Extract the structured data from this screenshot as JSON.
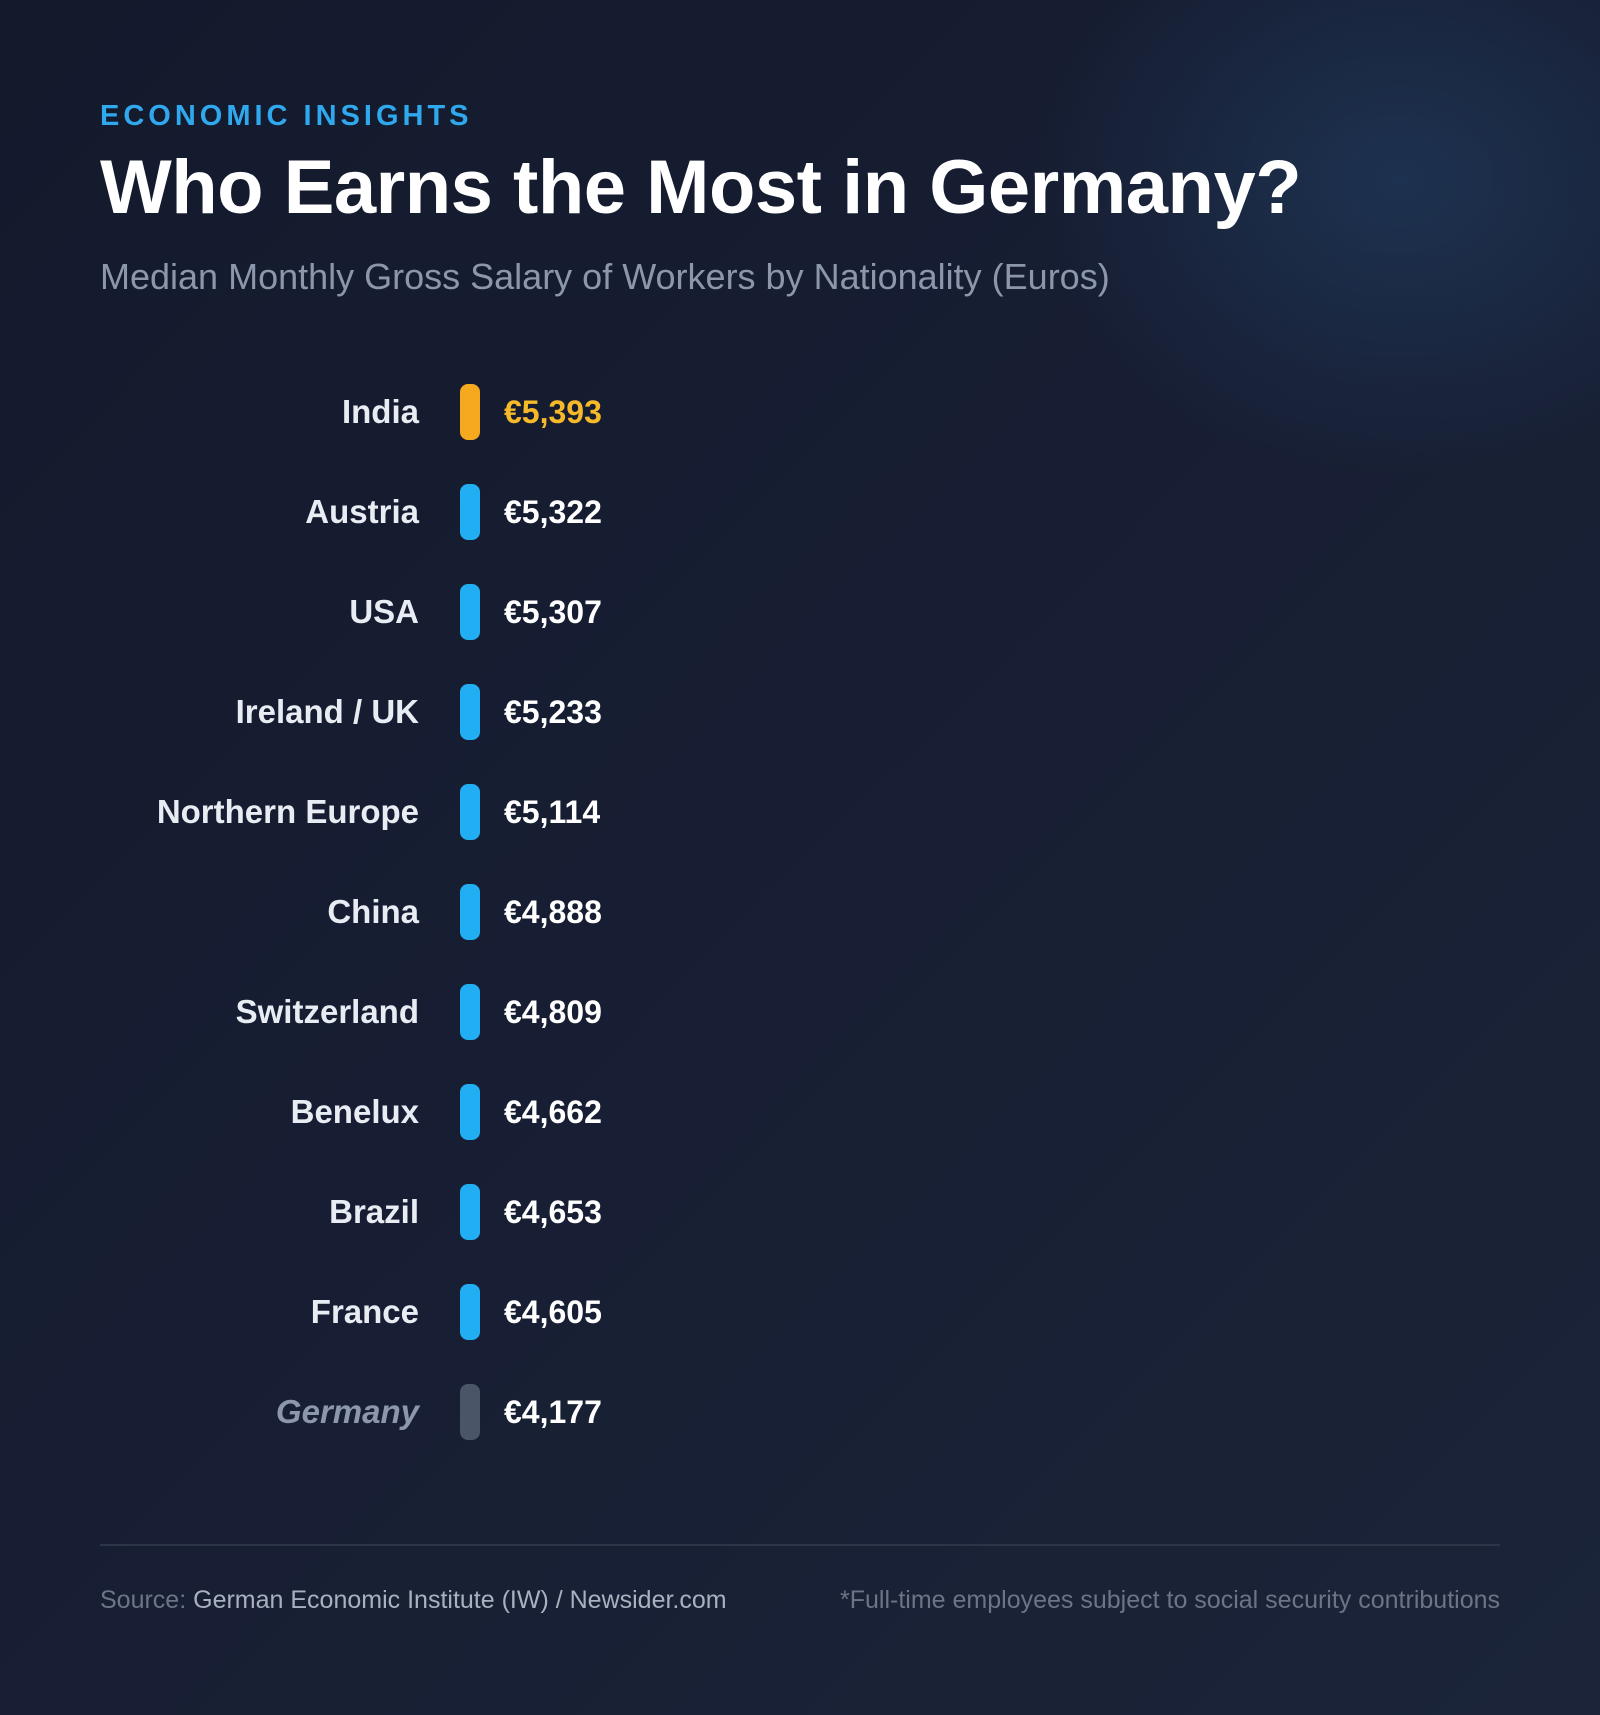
{
  "header": {
    "kicker": "ECONOMIC INSIGHTS",
    "title": "Who Earns the Most in Germany?",
    "subtitle": "Median Monthly Gross Salary of Workers by Nationality (Euros)"
  },
  "footer": {
    "source_label": "Source:",
    "source_text": "German Economic Institute (IW) / Newsider.com",
    "footnote": "*Full-time employees subject to social security contributions"
  },
  "colors": {
    "highlight": "#f4a91f",
    "highlight_text": "#f6b92a",
    "standard": "#22aef2",
    "baseline": "#4b5568",
    "label": "#e8ecf3",
    "baseline_label": "#8d97ab",
    "value": "#ffffff"
  },
  "chart_data": {
    "type": "bar",
    "title": "Who Earns the Most in Germany?",
    "subtitle": "Median Monthly Gross Salary of Workers by Nationality (Euros)",
    "categories": [
      "India",
      "Austria",
      "USA",
      "Ireland / UK",
      "Northern Europe",
      "China",
      "Switzerland",
      "Benelux",
      "Brazil",
      "France",
      "Germany"
    ],
    "values": [
      5393,
      5322,
      5307,
      5233,
      5114,
      4888,
      4809,
      4662,
      4653,
      4605,
      4177
    ],
    "value_labels": [
      "€5,393",
      "€5,322",
      "€5,307",
      "€5,233",
      "€5,114",
      "€4,888",
      "€4,809",
      "€4,662",
      "€4,653",
      "€4,605",
      "€4,177"
    ],
    "highlight": [
      "India"
    ],
    "baseline": [
      "Germany"
    ],
    "unit": "Euros",
    "legend": "none",
    "grid": false
  }
}
